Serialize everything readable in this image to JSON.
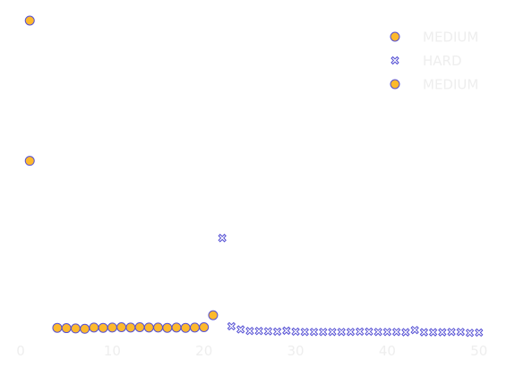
{
  "chart_data": {
    "type": "scatter",
    "title": "",
    "xlabel": "",
    "ylabel": "",
    "xlim": [
      0,
      51
    ],
    "ylim": [
      0,
      1
    ],
    "x_ticks": [
      0,
      10,
      20,
      30,
      40,
      50
    ],
    "x_tick_labels": [
      "0",
      "10",
      "20",
      "30",
      "40",
      "50"
    ],
    "y_axis_visible": false,
    "grid": false,
    "legend_position": "top-right",
    "series": [
      {
        "name": "MEDIUM",
        "marker": "circle",
        "fill": "#fdb92c",
        "stroke": "#5550d4",
        "points": [
          [
            1,
            0.555
          ],
          [
            4,
            0.025
          ],
          [
            5,
            0.024
          ],
          [
            6,
            0.023
          ],
          [
            7,
            0.022
          ],
          [
            8,
            0.026
          ],
          [
            9,
            0.025
          ],
          [
            10,
            0.026
          ],
          [
            11,
            0.027
          ],
          [
            12,
            0.026
          ],
          [
            13,
            0.027
          ],
          [
            14,
            0.026
          ],
          [
            15,
            0.026
          ],
          [
            16,
            0.025
          ],
          [
            17,
            0.026
          ],
          [
            18,
            0.025
          ],
          [
            19,
            0.026
          ],
          [
            20,
            0.027
          ],
          [
            21,
            0.065
          ]
        ]
      },
      {
        "name": "HARD",
        "marker": "x",
        "fill": "#ffffff",
        "stroke": "#5550d4",
        "points": [
          [
            22,
            0.31
          ],
          [
            23,
            0.03
          ],
          [
            24,
            0.02
          ],
          [
            25,
            0.015
          ],
          [
            26,
            0.015
          ],
          [
            27,
            0.014
          ],
          [
            28,
            0.013
          ],
          [
            29,
            0.016
          ],
          [
            30,
            0.013
          ],
          [
            31,
            0.012
          ],
          [
            32,
            0.012
          ],
          [
            33,
            0.012
          ],
          [
            34,
            0.012
          ],
          [
            35,
            0.012
          ],
          [
            36,
            0.012
          ],
          [
            37,
            0.013
          ],
          [
            38,
            0.013
          ],
          [
            39,
            0.012
          ],
          [
            40,
            0.012
          ],
          [
            41,
            0.012
          ],
          [
            42,
            0.011
          ],
          [
            43,
            0.018
          ],
          [
            44,
            0.011
          ],
          [
            45,
            0.011
          ],
          [
            46,
            0.011
          ],
          [
            47,
            0.012
          ],
          [
            48,
            0.012
          ],
          [
            49,
            0.009
          ],
          [
            50,
            0.01
          ]
        ]
      },
      {
        "name": "MEDIUM",
        "marker": "circle",
        "fill": "#fdb92c",
        "stroke": "#5550d4",
        "points": [
          [
            1,
            1.0
          ]
        ]
      }
    ]
  }
}
